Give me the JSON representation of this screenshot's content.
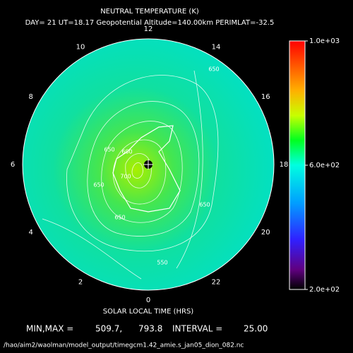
{
  "header": {
    "title": "NEUTRAL TEMPERATURE (K)",
    "subtitle": "DAY= 21 UT=18.17 Geopotential Altitude=140.00km PERIMLAT=-32.5"
  },
  "plot": {
    "hours": [
      0,
      2,
      4,
      6,
      8,
      10,
      12,
      14,
      16,
      18,
      20,
      22
    ],
    "xlabel": "SOLAR LOCAL TIME (HRS)",
    "contour_labels": [
      "650",
      "600",
      "650",
      "700",
      "650",
      "650",
      "650",
      "550"
    ]
  },
  "colorbar": {
    "range": [
      200,
      1000
    ],
    "ticks": [
      {
        "value": 1000,
        "label": "1.0e+03"
      },
      {
        "value": 600,
        "label": "6.0e+02"
      },
      {
        "value": 200,
        "label": "2.0e+02"
      }
    ]
  },
  "footer": {
    "minmax_label": "MIN,MAX =",
    "min": "509.7,",
    "max": "793.8",
    "interval_label": "INTERVAL =",
    "interval": "25.00",
    "file": "/hao/aim2/waolman/model_output/timegcm1.42_amie.s_jan05_dion_082.nc"
  }
}
